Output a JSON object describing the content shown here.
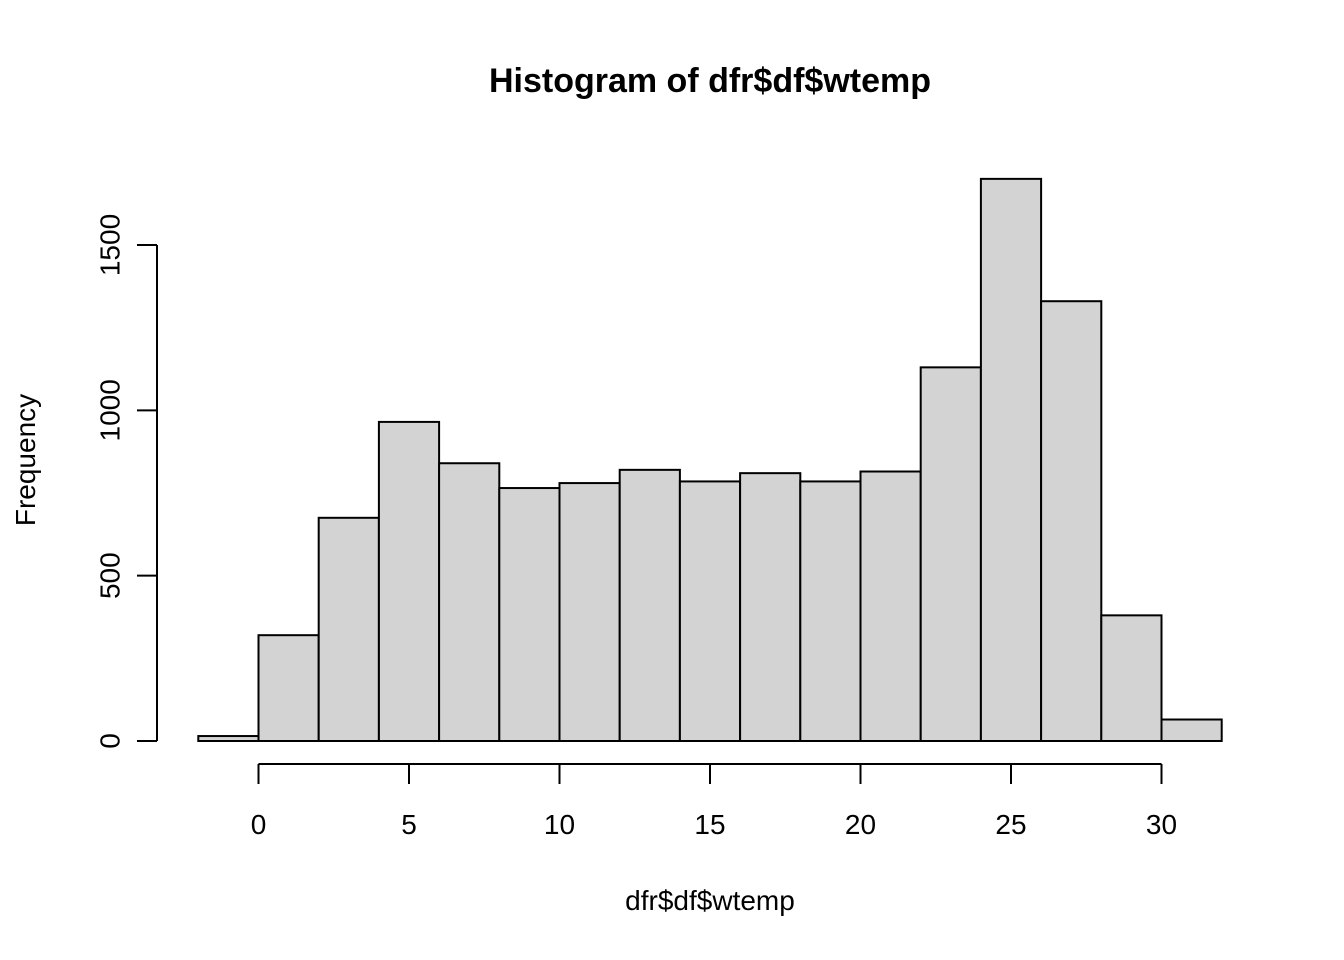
{
  "chart_data": {
    "type": "bar",
    "title": "Histogram of dfr$df$wtemp",
    "xlabel": "dfr$df$wtemp",
    "ylabel": "Frequency",
    "bin_edges": [
      -2,
      0,
      2,
      4,
      6,
      8,
      10,
      12,
      14,
      16,
      18,
      20,
      22,
      24,
      26,
      28,
      30,
      32
    ],
    "values": [
      15,
      320,
      675,
      965,
      840,
      765,
      780,
      820,
      785,
      810,
      785,
      815,
      1130,
      1700,
      1330,
      380,
      65
    ],
    "xlim": [
      -2,
      32
    ],
    "ylim": [
      0,
      1700
    ],
    "x_ticks": [
      0,
      5,
      10,
      15,
      20,
      25,
      30
    ],
    "y_ticks": [
      0,
      500,
      1000,
      1500
    ],
    "bar_color": "#d3d3d3",
    "border_color": "#000000",
    "grid": false
  }
}
